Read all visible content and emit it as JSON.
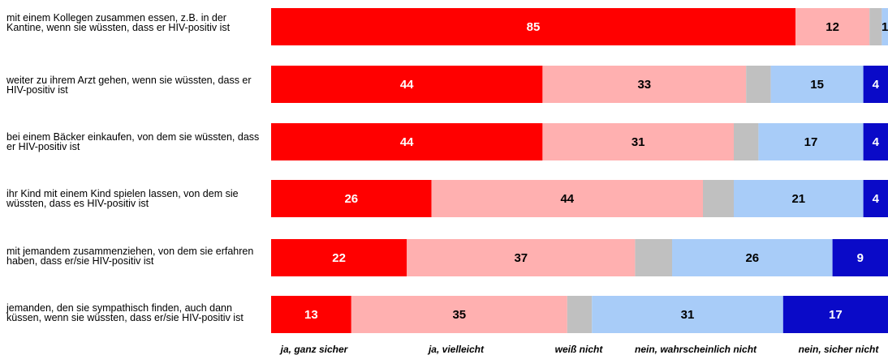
{
  "chart_data": {
    "type": "bar",
    "orientation": "horizontal",
    "stacked": true,
    "xlim": [
      0,
      100
    ],
    "grid": false,
    "legend_position": "bottom",
    "categories": [
      "mit einem Kollegen zusammen essen, z.B. in der Kantine, wenn sie wüssten, dass er HIV-positiv ist",
      "weiter zu ihrem Arzt gehen, wenn sie wüssten, dass er HIV-positiv ist",
      "bei einem Bäcker einkaufen, von dem sie wüssten, dass er HIV-positiv ist",
      "ihr Kind mit einem Kind spielen lassen, von dem sie wüssten, dass es HIV-positiv ist",
      "mit jemandem zusammenziehen, von dem sie erfahren haben, dass er/sie HIV-positiv ist",
      "jemanden, den sie sympathisch finden, auch dann küssen, wenn sie wüssten, dass er/sie HIV-positiv ist"
    ],
    "series": [
      {
        "name": "ja, ganz sicher",
        "color": "#ff0000",
        "label_color": "#ffffff",
        "values": [
          85,
          44,
          44,
          26,
          22,
          13
        ]
      },
      {
        "name": "ja, vielleicht",
        "color": "#ffb0b0",
        "label_color": "#000000",
        "values": [
          12,
          33,
          31,
          44,
          37,
          35
        ]
      },
      {
        "name": "weiß nicht",
        "color": "#c0c0c0",
        "label_color": "#000000",
        "values": [
          2,
          4,
          4,
          5,
          6,
          4
        ],
        "show_labels": false
      },
      {
        "name": "nein, wahrscheinlich nicht",
        "color": "#a8ccf8",
        "label_color": "#000000",
        "values": [
          1,
          15,
          17,
          21,
          26,
          31
        ]
      },
      {
        "name": "nein, sicher nicht",
        "color": "#0a0ac8",
        "label_color": "#ffffff",
        "values": [
          0,
          4,
          4,
          4,
          9,
          17
        ]
      }
    ]
  }
}
